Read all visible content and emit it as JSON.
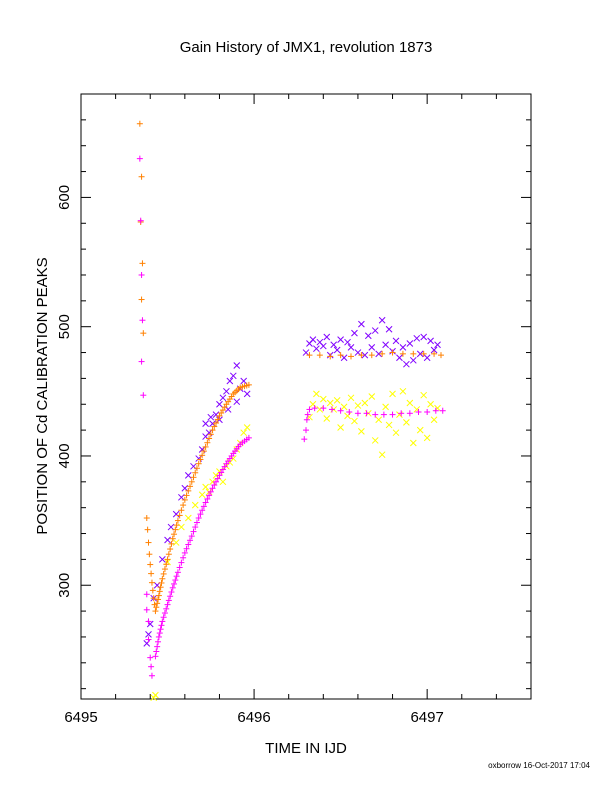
{
  "chart_data": {
    "type": "scatter",
    "title": "Gain History of JMX1, revolution 1873",
    "xlabel": "TIME IN IJD",
    "ylabel": "POSITION OF Cd CALIBRATION PEAKS",
    "footer": "oxborrow 16-Oct-2017 17:04",
    "xlim": [
      6495,
      6497.6
    ],
    "ylim": [
      212,
      680
    ],
    "x_ticks": [
      6495,
      6496,
      6497
    ],
    "x_tick_labels": [
      "6495",
      "6496",
      "6497"
    ],
    "y_ticks": [
      300,
      400,
      500,
      600
    ],
    "y_tick_labels": [
      "300",
      "400",
      "500",
      "600"
    ],
    "grid": false,
    "legend": "none",
    "colors": {
      "orange": "#ff8000",
      "magenta": "#ff00ff",
      "purple": "#8000ff",
      "yellow": "#ffff00"
    },
    "series": [
      {
        "color": "#8000ff",
        "marker": "x",
        "points": [
          [
            6495.38,
            255
          ],
          [
            6495.39,
            262
          ],
          [
            6495.4,
            270
          ],
          [
            6495.42,
            290
          ],
          [
            6495.44,
            300
          ],
          [
            6495.47,
            320
          ],
          [
            6495.5,
            335
          ],
          [
            6495.52,
            345
          ],
          [
            6495.55,
            355
          ],
          [
            6495.58,
            368
          ],
          [
            6495.6,
            375
          ],
          [
            6495.62,
            385
          ],
          [
            6495.65,
            392
          ],
          [
            6495.68,
            398
          ],
          [
            6495.7,
            405
          ],
          [
            6495.72,
            415
          ],
          [
            6495.74,
            418
          ],
          [
            6495.76,
            425
          ],
          [
            6495.78,
            432
          ],
          [
            6495.8,
            440
          ],
          [
            6495.82,
            445
          ],
          [
            6495.84,
            450
          ],
          [
            6495.86,
            458
          ],
          [
            6495.88,
            462
          ],
          [
            6495.9,
            470
          ],
          [
            6495.92,
            452
          ],
          [
            6495.94,
            458
          ],
          [
            6495.96,
            448
          ],
          [
            6495.72,
            425
          ],
          [
            6495.75,
            430
          ],
          [
            6495.8,
            428
          ],
          [
            6495.85,
            436
          ],
          [
            6495.9,
            442
          ],
          [
            6496.3,
            480
          ],
          [
            6496.32,
            487
          ],
          [
            6496.34,
            490
          ],
          [
            6496.36,
            483
          ],
          [
            6496.38,
            488
          ],
          [
            6496.4,
            485
          ],
          [
            6496.42,
            492
          ],
          [
            6496.44,
            478
          ],
          [
            6496.46,
            486
          ],
          [
            6496.48,
            482
          ],
          [
            6496.5,
            490
          ],
          [
            6496.52,
            476
          ],
          [
            6496.54,
            488
          ],
          [
            6496.56,
            484
          ],
          [
            6496.58,
            495
          ],
          [
            6496.6,
            480
          ],
          [
            6496.62,
            502
          ],
          [
            6496.64,
            478
          ],
          [
            6496.66,
            493
          ],
          [
            6496.68,
            484
          ],
          [
            6496.7,
            497
          ],
          [
            6496.72,
            479
          ],
          [
            6496.74,
            505
          ],
          [
            6496.76,
            486
          ],
          [
            6496.78,
            498
          ],
          [
            6496.8,
            481
          ],
          [
            6496.82,
            489
          ],
          [
            6496.84,
            476
          ],
          [
            6496.86,
            484
          ],
          [
            6496.88,
            471
          ],
          [
            6496.9,
            487
          ],
          [
            6496.92,
            474
          ],
          [
            6496.94,
            491
          ],
          [
            6496.96,
            479
          ],
          [
            6496.98,
            492
          ],
          [
            6497,
            476
          ],
          [
            6497.02,
            489
          ],
          [
            6497.04,
            482
          ],
          [
            6497.06,
            486
          ]
        ]
      },
      {
        "color": "#ffff00",
        "marker": "x",
        "points": [
          [
            6495.42,
            213
          ],
          [
            6495.43,
            215
          ],
          [
            6495.5,
            318
          ],
          [
            6495.55,
            333
          ],
          [
            6495.58,
            345
          ],
          [
            6495.62,
            352
          ],
          [
            6495.66,
            362
          ],
          [
            6495.7,
            370
          ],
          [
            6495.72,
            376
          ],
          [
            6495.74,
            372
          ],
          [
            6495.76,
            380
          ],
          [
            6495.78,
            385
          ],
          [
            6495.8,
            388
          ],
          [
            6495.82,
            380
          ],
          [
            6495.84,
            392
          ],
          [
            6495.86,
            395
          ],
          [
            6495.88,
            398
          ],
          [
            6495.9,
            405
          ],
          [
            6495.92,
            410
          ],
          [
            6495.94,
            418
          ],
          [
            6495.96,
            422
          ],
          [
            6496.32,
            430
          ],
          [
            6496.34,
            440
          ],
          [
            6496.36,
            448
          ],
          [
            6496.38,
            436
          ],
          [
            6496.4,
            444
          ],
          [
            6496.42,
            429
          ],
          [
            6496.44,
            441
          ],
          [
            6496.46,
            436
          ],
          [
            6496.48,
            443
          ],
          [
            6496.5,
            422
          ],
          [
            6496.52,
            438
          ],
          [
            6496.54,
            431
          ],
          [
            6496.56,
            445
          ],
          [
            6496.58,
            427
          ],
          [
            6496.6,
            439
          ],
          [
            6496.62,
            419
          ],
          [
            6496.64,
            441
          ],
          [
            6496.66,
            433
          ],
          [
            6496.68,
            446
          ],
          [
            6496.7,
            412
          ],
          [
            6496.72,
            428
          ],
          [
            6496.74,
            401
          ],
          [
            6496.76,
            438
          ],
          [
            6496.78,
            424
          ],
          [
            6496.8,
            448
          ],
          [
            6496.82,
            418
          ],
          [
            6496.84,
            432
          ],
          [
            6496.86,
            450
          ],
          [
            6496.88,
            426
          ],
          [
            6496.9,
            441
          ],
          [
            6496.92,
            410
          ],
          [
            6496.94,
            436
          ],
          [
            6496.96,
            420
          ],
          [
            6496.98,
            447
          ],
          [
            6497,
            414
          ],
          [
            6497.02,
            440
          ],
          [
            6497.04,
            428
          ],
          [
            6497.06,
            437
          ]
        ]
      },
      {
        "color": "#ff8000",
        "marker": "+",
        "points": [
          [
            6495.34,
            657
          ],
          [
            6495.35,
            616
          ],
          [
            6495.345,
            581
          ],
          [
            6495.355,
            549
          ],
          [
            6495.35,
            521
          ],
          [
            6495.36,
            495
          ],
          [
            6495.38,
            352
          ],
          [
            6495.385,
            343
          ],
          [
            6495.39,
            333
          ],
          [
            6495.395,
            324
          ],
          [
            6495.4,
            316
          ],
          [
            6495.405,
            309
          ],
          [
            6495.41,
            302
          ],
          [
            6495.415,
            296
          ],
          [
            6495.42,
            290
          ],
          [
            6495.425,
            285
          ],
          [
            6496.32,
            478
          ],
          [
            6496.38,
            478
          ],
          [
            6496.44,
            477
          ],
          [
            6496.5,
            478
          ],
          [
            6496.56,
            477
          ],
          [
            6496.62,
            478
          ],
          [
            6496.68,
            478
          ],
          [
            6496.74,
            479
          ],
          [
            6496.8,
            480
          ],
          [
            6496.86,
            479
          ],
          [
            6496.92,
            479
          ],
          [
            6496.98,
            479
          ],
          [
            6497.04,
            479
          ],
          [
            6497.08,
            478
          ]
        ]
      },
      {
        "color": "#ff8000",
        "marker": "+",
        "curve": [
          [
            6495.43,
            280
          ],
          [
            6495.45,
            292
          ],
          [
            6495.47,
            305
          ],
          [
            6495.5,
            320
          ],
          [
            6495.53,
            336
          ],
          [
            6495.56,
            350
          ],
          [
            6495.6,
            366
          ],
          [
            6495.64,
            380
          ],
          [
            6495.68,
            394
          ],
          [
            6495.72,
            407
          ],
          [
            6495.76,
            420
          ],
          [
            6495.8,
            431
          ],
          [
            6495.84,
            440
          ],
          [
            6495.88,
            448
          ],
          [
            6495.92,
            453
          ],
          [
            6495.97,
            455
          ]
        ]
      },
      {
        "color": "#ff00ff",
        "marker": "+",
        "points": [
          [
            6495.34,
            630
          ],
          [
            6495.345,
            582
          ],
          [
            6495.35,
            540
          ],
          [
            6495.355,
            505
          ],
          [
            6495.35,
            473
          ],
          [
            6495.36,
            447
          ],
          [
            6495.38,
            293
          ],
          [
            6495.38,
            281
          ],
          [
            6495.39,
            272
          ],
          [
            6495.39,
            258
          ],
          [
            6495.4,
            244
          ],
          [
            6495.405,
            237
          ],
          [
            6495.41,
            230
          ],
          [
            6496.29,
            413
          ],
          [
            6496.3,
            420
          ],
          [
            6496.305,
            428
          ],
          [
            6496.31,
            432
          ],
          [
            6496.32,
            436
          ],
          [
            6496.35,
            437
          ],
          [
            6496.4,
            437
          ],
          [
            6496.45,
            436
          ],
          [
            6496.5,
            435
          ],
          [
            6496.55,
            434
          ],
          [
            6496.6,
            433
          ],
          [
            6496.65,
            433
          ],
          [
            6496.7,
            432
          ],
          [
            6496.75,
            432
          ],
          [
            6496.8,
            432
          ],
          [
            6496.85,
            433
          ],
          [
            6496.9,
            433
          ],
          [
            6496.95,
            434
          ],
          [
            6497,
            434
          ],
          [
            6497.05,
            435
          ],
          [
            6497.09,
            435
          ]
        ]
      },
      {
        "color": "#ff00ff",
        "marker": "+",
        "curve": [
          [
            6495.43,
            245
          ],
          [
            6495.45,
            260
          ],
          [
            6495.47,
            272
          ],
          [
            6495.5,
            285
          ],
          [
            6495.53,
            298
          ],
          [
            6495.56,
            310
          ],
          [
            6495.6,
            325
          ],
          [
            6495.64,
            338
          ],
          [
            6495.68,
            352
          ],
          [
            6495.72,
            364
          ],
          [
            6495.76,
            375
          ],
          [
            6495.8,
            385
          ],
          [
            6495.84,
            394
          ],
          [
            6495.88,
            402
          ],
          [
            6495.92,
            409
          ],
          [
            6495.97,
            414
          ]
        ]
      }
    ]
  }
}
